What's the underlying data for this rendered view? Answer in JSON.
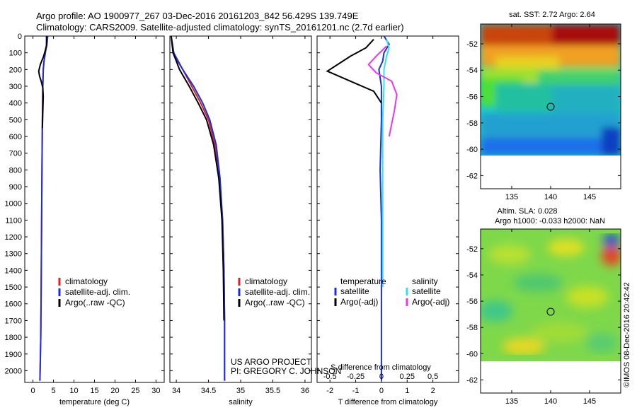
{
  "header": {
    "title_line1": "Argo profile: AO 1900977_267 03-Dec-2016 20161203_842 56.429S 139.749E",
    "title_line2": "Climatology: CARS2009. Satellite-adjusted climatology: synTS_20161201.nc (2.7d earlier)"
  },
  "credit": {
    "project": "US ARGO PROJECT",
    "pi": "PI: GREGORY C. JOHNSON",
    "imos_stamp": "©IMOS 08-Dec-2016 20:42:42"
  },
  "colors": {
    "climatology": "#dd2020",
    "satellite": "#1a2ee0",
    "argo": "#000000",
    "satellite_salinity": "#33e0f0",
    "argo_salinity_adj": "#ee33ee"
  },
  "legends": {
    "temperature_panel": [
      "climatology",
      "satellite-adj. clim.",
      "Argo(..raw -QC)"
    ],
    "salinity_panel": [
      "climatology",
      "satellite-adj. clim.",
      "Argo(..raw -QC)"
    ],
    "difference_panel": {
      "temperature_heading": "temperature",
      "salinity_heading": "salinity",
      "temperature_items": [
        "satellite",
        "Argo(-adj)"
      ],
      "salinity_items": [
        "satellite",
        "Argo(-adj)"
      ]
    }
  },
  "chart_data": [
    {
      "type": "line",
      "panel": "temperature",
      "xlabel": "temperature (deg C)",
      "ylabel": "",
      "xlim": [
        -2,
        32
      ],
      "ylim": [
        2070,
        0
      ],
      "xticks": [
        0,
        5,
        10,
        15,
        20,
        25,
        30
      ],
      "yticks": [
        0,
        100,
        200,
        300,
        400,
        500,
        600,
        700,
        800,
        900,
        1000,
        1100,
        1200,
        1300,
        1400,
        1500,
        1600,
        1700,
        1800,
        1900,
        2000
      ],
      "legend_position": "lower-right",
      "series": [
        {
          "name": "climatology",
          "color": "#dd2020",
          "x": [
            3.4,
            3.3,
            3.0,
            2.7,
            2.5,
            2.4,
            2.3,
            2.2,
            2.1,
            2.0,
            1.9,
            1.7
          ],
          "y": [
            0,
            50,
            100,
            150,
            200,
            300,
            500,
            800,
            1100,
            1500,
            1800,
            2060
          ]
        },
        {
          "name": "satellite-adj. clim.",
          "color": "#1a2ee0",
          "x": [
            3.6,
            3.4,
            3.0,
            2.7,
            2.5,
            2.4,
            2.3,
            2.2,
            2.1,
            2.0,
            1.9,
            1.7
          ],
          "y": [
            0,
            50,
            100,
            150,
            200,
            300,
            500,
            800,
            1100,
            1500,
            1800,
            2060
          ]
        },
        {
          "name": "Argo(..raw -QC)",
          "color": "#000000",
          "x": [
            3.3,
            3.3,
            2.6,
            1.8,
            1.4,
            1.6,
            2.0,
            2.4,
            2.5,
            2.4,
            2.3
          ],
          "y": [
            0,
            60,
            120,
            170,
            210,
            240,
            270,
            310,
            360,
            450,
            550
          ]
        }
      ]
    },
    {
      "type": "line",
      "panel": "salinity",
      "xlabel": "salinity",
      "ylabel": "",
      "xlim": [
        33.9,
        36.1
      ],
      "ylim": [
        2070,
        0
      ],
      "xticks": [
        34,
        34.5,
        35,
        35.5,
        36
      ],
      "xticklabels": [
        "34",
        "34.5",
        "35",
        "35.5",
        "36"
      ],
      "legend_position": "lower-right",
      "series": [
        {
          "name": "climatology",
          "color": "#dd2020",
          "x": [
            33.92,
            33.96,
            34.02,
            34.1,
            34.24,
            34.38,
            34.5,
            34.6,
            34.67,
            34.72,
            34.74,
            34.75,
            34.75
          ],
          "y": [
            0,
            100,
            150,
            200,
            300,
            400,
            500,
            650,
            850,
            1100,
            1400,
            1700,
            2060
          ]
        },
        {
          "name": "satellite-adj. clim.",
          "color": "#1a2ee0",
          "x": [
            33.92,
            33.96,
            34.03,
            34.1,
            34.27,
            34.41,
            34.52,
            34.62,
            34.68,
            34.72,
            34.74,
            34.75,
            34.75
          ],
          "y": [
            0,
            100,
            150,
            200,
            300,
            400,
            500,
            650,
            850,
            1100,
            1400,
            1700,
            2060
          ]
        },
        {
          "name": "Argo(..raw -QC)",
          "color": "#000000",
          "x": [
            33.92,
            33.95,
            34.0,
            34.05,
            34.2,
            34.34,
            34.47,
            34.58,
            34.66,
            34.71,
            34.73,
            34.74
          ],
          "y": [
            0,
            100,
            150,
            200,
            300,
            400,
            500,
            650,
            850,
            1100,
            1400,
            1700
          ]
        }
      ]
    },
    {
      "type": "line",
      "panel": "difference",
      "xlabel": "T difference from climatology",
      "xlabel_top": "S difference from climatology",
      "xlim": [
        -2.5,
        3.0
      ],
      "ylim": [
        2070,
        0
      ],
      "xticks": [
        -2,
        -1,
        0,
        1,
        2
      ],
      "xticks_salinity_labels": [
        "-0.5",
        "-0.25",
        "0",
        "0.25",
        "0.5"
      ],
      "legend_position": "lower-center",
      "series": [
        {
          "name": "temperature satellite",
          "color": "#1a2ee0",
          "x": [
            0.1,
            0.3,
            0.1,
            0.05,
            -0.1,
            0.0,
            0.0,
            -0.05,
            0.0,
            0.0,
            0.0
          ],
          "y": [
            0,
            50,
            100,
            150,
            200,
            300,
            500,
            800,
            1100,
            1500,
            2060
          ]
        },
        {
          "name": "temperature Argo(-adj)",
          "color": "#000000",
          "x": [
            -0.3,
            -0.6,
            -1.2,
            -1.6,
            -2.1,
            -1.2,
            -0.3,
            0.0
          ],
          "y": [
            20,
            70,
            120,
            160,
            210,
            270,
            330,
            400
          ]
        },
        {
          "name": "salinity satellite",
          "color": "#33e0f0",
          "x": [
            0.2,
            0.3,
            0.2,
            0.1,
            0.1,
            0.05,
            0.05,
            0.05
          ],
          "y": [
            20,
            70,
            120,
            200,
            300,
            500,
            900,
            1500
          ]
        },
        {
          "name": "salinity Argo(-adj)",
          "color": "#ee33ee",
          "x": [
            0.2,
            -0.2,
            -0.5,
            -0.2,
            0.4,
            0.6,
            0.5,
            0.3
          ],
          "y": [
            60,
            120,
            170,
            220,
            270,
            350,
            450,
            600
          ]
        }
      ]
    },
    {
      "type": "heatmap",
      "panel": "sst_map",
      "title": "sat. SST: 2.72 Argo: 2.64",
      "xlim": [
        131,
        149
      ],
      "ylim": [
        -63,
        -50.5
      ],
      "xticks": [
        135,
        140,
        145
      ],
      "yticks": [
        -52,
        -54,
        -56,
        -58,
        -60,
        -62
      ],
      "marker": {
        "lon": 139.749,
        "lat": -56.429
      }
    },
    {
      "type": "heatmap",
      "panel": "sla_map",
      "title_line1": "Altim. SLA: 0.028",
      "title_line2": "Argo h1000: -0.033 h2000: NaN",
      "xlim": [
        131,
        149
      ],
      "ylim": [
        -63,
        -50.5
      ],
      "xticks": [
        135,
        140,
        145
      ],
      "yticks": [
        -52,
        -54,
        -56,
        -58,
        -60,
        -62
      ],
      "marker": {
        "lon": 139.749,
        "lat": -56.429
      }
    }
  ]
}
